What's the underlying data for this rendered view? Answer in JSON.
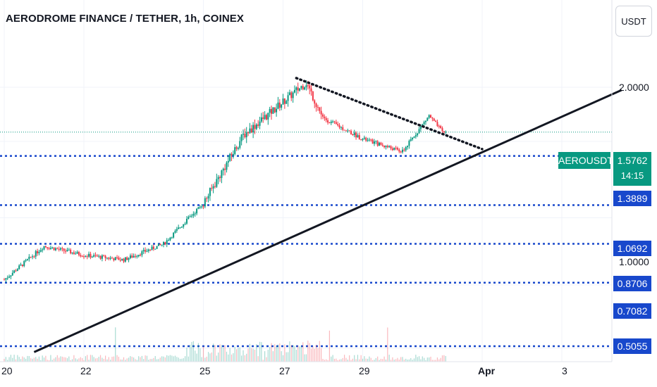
{
  "header": {
    "title": "AERODROME FINANCE / TETHER, 1h, COINEX",
    "currency_button": "USDT"
  },
  "symbol_badge": "AEROUSDT",
  "last_price": {
    "value": "1.5762",
    "countdown": "14:15"
  },
  "price_ticks": [
    "2.0000",
    "1.0000"
  ],
  "level_labels": [
    "1.3889",
    "1.0692",
    "0.8706",
    "0.7082",
    "0.5055"
  ],
  "x_ticks": [
    {
      "label": "20",
      "bold": false
    },
    {
      "label": "22",
      "bold": false
    },
    {
      "label": "25",
      "bold": false
    },
    {
      "label": "27",
      "bold": false
    },
    {
      "label": "29",
      "bold": false
    },
    {
      "label": "Apr",
      "bold": true
    },
    {
      "label": "3",
      "bold": false
    }
  ],
  "colors": {
    "up": "#089981",
    "down": "#f23645",
    "level_line": "#1848cc",
    "trendline": "#131722",
    "grid": "#f0f3fa",
    "last_price_line": "#089981"
  },
  "chart_data": {
    "type": "candlestick",
    "symbol": "AEROUSDT",
    "exchange": "COINEX",
    "interval": "1h",
    "scale": "log",
    "y_range_visible": [
      0.48,
      2.45
    ],
    "last_price": 1.5762,
    "horizontal_levels": [
      1.3889,
      1.0692,
      0.8706,
      0.7082,
      0.5055
    ],
    "price_path": [
      {
        "date": "2025-03-20",
        "price": 0.72
      },
      {
        "date": "2025-03-21",
        "price": 0.86
      },
      {
        "date": "2025-03-22",
        "price": 0.82
      },
      {
        "date": "2025-03-23",
        "price": 0.8
      },
      {
        "date": "2025-03-24",
        "price": 0.87
      },
      {
        "date": "2025-03-25",
        "price": 1.08
      },
      {
        "date": "2025-03-26",
        "price": 1.55
      },
      {
        "date": "2025-03-27",
        "price": 1.85
      },
      {
        "date": "2025-03-27 14:00",
        "price": 2.05
      },
      {
        "date": "2025-03-28",
        "price": 1.7
      },
      {
        "date": "2025-03-29",
        "price": 1.52
      },
      {
        "date": "2025-03-30",
        "price": 1.42
      },
      {
        "date": "2025-03-30 16:00",
        "price": 1.72
      },
      {
        "date": "2025-03-31",
        "price": 1.5762
      }
    ],
    "trendlines": [
      {
        "style": "solid",
        "from": {
          "date": "2025-03-20 18:00",
          "price": 0.49
        },
        "to": {
          "date": "2025-04-04 12:00",
          "price": 1.97
        }
      },
      {
        "style": "dotted",
        "from": {
          "date": "2025-03-27 08:00",
          "price": 2.1
        },
        "to": {
          "date": "2025-04-01 00:00",
          "price": 1.44
        }
      }
    ]
  }
}
